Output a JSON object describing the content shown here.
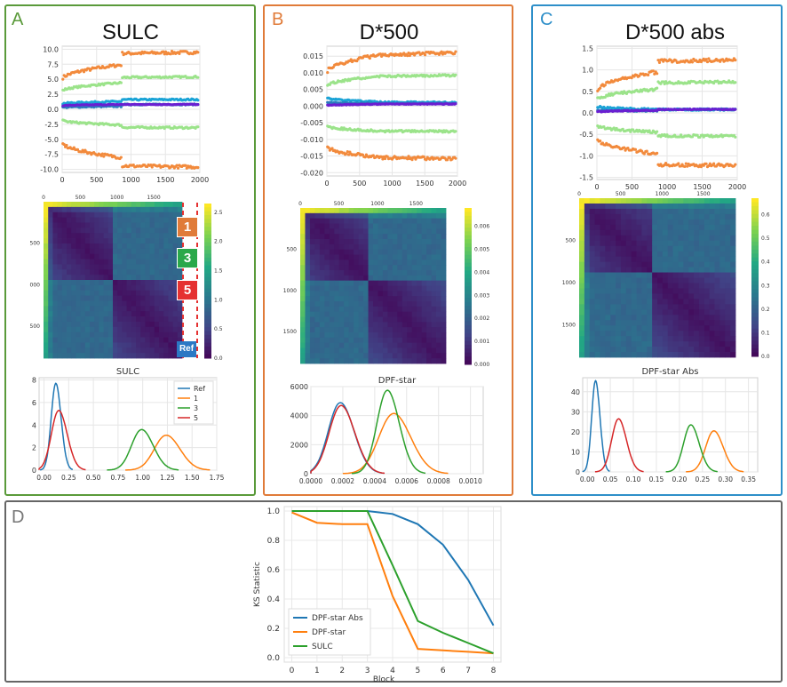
{
  "colors": {
    "orange": "#f28a3c",
    "light_green": "#9be38a",
    "blue": "#2b7bbd",
    "cyan": "#1aa3d6",
    "purple": "#6a1fd1",
    "line_blue": "#1f77b4",
    "line_orange": "#ff7f0e",
    "line_green": "#2ca02c",
    "line_red": "#d62728",
    "panel_a": "#5a9a3a",
    "panel_b": "#e07b39",
    "panel_c": "#2e8fc9",
    "panel_d": "#666666"
  },
  "panels": [
    {
      "letter": "A",
      "title": "SULC"
    },
    {
      "letter": "B",
      "title": "D*500"
    },
    {
      "letter": "C",
      "title": "D*500 abs"
    },
    {
      "letter": "D",
      "title": ""
    }
  ],
  "heatmap_labels": {
    "markers": [
      "1",
      "3",
      "5",
      "Ref"
    ]
  },
  "chart_data": [
    {
      "id": "A-scatter",
      "type": "scatter",
      "title": "",
      "xlim": [
        0,
        2000
      ],
      "ylim": [
        -10.5,
        10.5
      ],
      "xticks": [
        "0",
        "500",
        "1000",
        "1500",
        "2000"
      ],
      "yticks": [
        "10.0",
        "7.5",
        "5.0",
        "2.5",
        "0.0",
        "-2.5",
        "-5.0",
        "-7.5",
        "-10.0"
      ],
      "ytick_values": [
        10,
        7.5,
        5,
        2.5,
        0,
        -2.5,
        -5,
        -7.5,
        -10
      ],
      "series": [
        {
          "name": "top-orange",
          "color": "orange",
          "y0": 5.0,
          "y1": 7.4,
          "jump": 1.9,
          "noise": 0.25
        },
        {
          "name": "upper-green",
          "color": "light_green",
          "y0": 3.0,
          "y1": 4.4,
          "jump": 0.9,
          "noise": 0.15
        },
        {
          "name": "cyan",
          "color": "cyan",
          "y0": 0.9,
          "y1": 1.3,
          "jump": 0.3,
          "noise": 0.12
        },
        {
          "name": "blue",
          "color": "blue",
          "y0": 0.3,
          "y1": 0.5,
          "jump": 0.3,
          "noise": 0.1
        },
        {
          "name": "purple",
          "color": "purple",
          "y0": 0.6,
          "y1": 0.8,
          "jump": 0.0,
          "noise": 0.06
        },
        {
          "name": "lower-green",
          "color": "light_green",
          "y0": -1.8,
          "y1": -2.6,
          "jump": -0.4,
          "noise": 0.15
        },
        {
          "name": "bottom-orange",
          "color": "orange",
          "y0": -5.5,
          "y1": -8.0,
          "jump": -1.4,
          "noise": 0.25
        }
      ]
    },
    {
      "id": "B-scatter",
      "type": "scatter",
      "title": "",
      "xlim": [
        0,
        2000
      ],
      "ylim": [
        -0.021,
        0.018
      ],
      "xticks": [
        "0",
        "500",
        "1000",
        "1500",
        "2000"
      ],
      "yticks": [
        "0.015",
        "0.010",
        "0.005",
        "0.000",
        "-0.005",
        "-0.010",
        "-0.015",
        "-0.020"
      ],
      "ytick_values": [
        0.015,
        0.01,
        0.005,
        0,
        -0.005,
        -0.01,
        -0.015,
        -0.02
      ],
      "series": [
        {
          "name": "top-orange",
          "color": "orange",
          "y0": 0.01,
          "y1": 0.0155,
          "jump": 0.0,
          "noise": 0.0005
        },
        {
          "name": "upper-green",
          "color": "light_green",
          "y0": 0.006,
          "y1": 0.009,
          "jump": 0.0,
          "noise": 0.0003
        },
        {
          "name": "cyan",
          "color": "cyan",
          "y0": 0.0025,
          "y1": 0.0012,
          "jump": 0.0,
          "noise": 0.0002
        },
        {
          "name": "blue",
          "color": "blue",
          "y0": 0.001,
          "y1": 0.0008,
          "jump": 0.0,
          "noise": 0.0002
        },
        {
          "name": "purple",
          "color": "purple",
          "y0": 0.0002,
          "y1": 0.0006,
          "jump": 0.0,
          "noise": 0.0001
        },
        {
          "name": "lower-green",
          "color": "light_green",
          "y0": -0.006,
          "y1": -0.0075,
          "jump": 0.0,
          "noise": 0.0003
        },
        {
          "name": "bottom-orange",
          "color": "orange",
          "y0": -0.012,
          "y1": -0.0155,
          "jump": 0.0,
          "noise": 0.0005
        }
      ]
    },
    {
      "id": "C-scatter",
      "type": "scatter",
      "title": "",
      "xlim": [
        0,
        2000
      ],
      "ylim": [
        -1.55,
        1.55
      ],
      "xticks": [
        "0",
        "500",
        "1000",
        "1500",
        "2000"
      ],
      "yticks": [
        "1.5",
        "1.0",
        "0.5",
        "0.0",
        "-0.5",
        "-1.0",
        "-1.5"
      ],
      "ytick_values": [
        1.5,
        1,
        0.5,
        0,
        -0.5,
        -1,
        -1.5
      ],
      "series": [
        {
          "name": "top-orange",
          "color": "orange",
          "y0": 0.5,
          "y1": 0.95,
          "jump": 0.25,
          "noise": 0.04
        },
        {
          "name": "upper-green",
          "color": "light_green",
          "y0": 0.3,
          "y1": 0.55,
          "jump": 0.15,
          "noise": 0.03
        },
        {
          "name": "cyan",
          "color": "cyan",
          "y0": 0.15,
          "y1": 0.08,
          "jump": 0.0,
          "noise": 0.02
        },
        {
          "name": "blue",
          "color": "blue",
          "y0": 0.05,
          "y1": 0.05,
          "jump": 0.03,
          "noise": 0.015
        },
        {
          "name": "purple",
          "color": "purple",
          "y0": 0.02,
          "y1": 0.06,
          "jump": 0.02,
          "noise": 0.01
        },
        {
          "name": "lower-green",
          "color": "light_green",
          "y0": -0.3,
          "y1": -0.45,
          "jump": -0.08,
          "noise": 0.03
        },
        {
          "name": "bottom-orange",
          "color": "orange",
          "y0": -0.6,
          "y1": -0.95,
          "jump": -0.25,
          "noise": 0.04
        }
      ]
    },
    {
      "id": "A-heatmap",
      "type": "heatmap",
      "title": "",
      "xticks": [
        "0",
        "500",
        "1000",
        "1500"
      ],
      "yticks": [
        "500",
        "000",
        "500"
      ],
      "colorbar": {
        "ticks": [
          "2.5",
          "2.0",
          "1.5",
          "1.0",
          "0.5",
          "0.0"
        ],
        "values": [
          2.5,
          2.0,
          1.5,
          1.0,
          0.5,
          0.0
        ],
        "max": 2.65
      }
    },
    {
      "id": "B-heatmap",
      "type": "heatmap",
      "title": "",
      "xticks": [
        "0",
        "500",
        "1000",
        "1500"
      ],
      "yticks": [
        "500",
        "1000",
        "1500"
      ],
      "colorbar": {
        "ticks": [
          "0.006",
          "0.005",
          "0.004",
          "0.003",
          "0.002",
          "0.001",
          "0.000"
        ],
        "values": [
          0.006,
          0.005,
          0.004,
          0.003,
          0.002,
          0.001,
          0.0
        ],
        "max": 0.0068
      }
    },
    {
      "id": "C-heatmap",
      "type": "heatmap",
      "title": "",
      "xticks": [
        "0",
        "500",
        "1000",
        "1500"
      ],
      "yticks": [
        "500",
        "1000",
        "1500"
      ],
      "colorbar": {
        "ticks": [
          "0.6",
          "0.5",
          "0.4",
          "0.3",
          "0.2",
          "0.1",
          "0.0"
        ],
        "values": [
          0.6,
          0.5,
          0.4,
          0.3,
          0.2,
          0.1,
          0.0
        ],
        "max": 0.67
      }
    },
    {
      "id": "A-density",
      "type": "line",
      "title": "SULC",
      "xlim": [
        -0.05,
        1.75
      ],
      "ylim": [
        0,
        8.2
      ],
      "xticks": [
        "0.00",
        "0.25",
        "0.50",
        "0.75",
        "1.00",
        "1.25",
        "1.50",
        "1.75"
      ],
      "xtick_values": [
        0,
        0.25,
        0.5,
        0.75,
        1.0,
        1.25,
        1.5,
        1.75
      ],
      "yticks": [
        "8",
        "6",
        "4",
        "2",
        "0"
      ],
      "ytick_values": [
        8,
        6,
        4,
        2,
        0
      ],
      "legend": [
        "Ref",
        "1",
        "3",
        "5"
      ],
      "series": [
        {
          "name": "Ref",
          "color": "line_blue",
          "mu": 0.12,
          "sigma": 0.05,
          "peak": 7.7
        },
        {
          "name": "1",
          "color": "line_orange",
          "mu": 1.24,
          "sigma": 0.13,
          "peak": 3.1
        },
        {
          "name": "3",
          "color": "line_green",
          "mu": 0.99,
          "sigma": 0.11,
          "peak": 3.6
        },
        {
          "name": "5",
          "color": "line_red",
          "mu": 0.15,
          "sigma": 0.08,
          "peak": 5.3
        }
      ]
    },
    {
      "id": "B-density",
      "type": "line",
      "title": "DPF-star",
      "xlim": [
        0,
        0.00108
      ],
      "ylim": [
        0,
        6000
      ],
      "xticks": [
        "0.0000",
        "0.0002",
        "0.0004",
        "0.0006",
        "0.0008",
        "0.0010"
      ],
      "xtick_values": [
        0,
        0.0002,
        0.0004,
        0.0006,
        0.0008,
        0.001
      ],
      "yticks": [
        "6000",
        "4000",
        "2000",
        "0"
      ],
      "ytick_values": [
        6000,
        4000,
        2000,
        0
      ],
      "series": [
        {
          "name": "Ref",
          "color": "line_blue",
          "mu": 0.000185,
          "sigma": 8e-05,
          "peak": 4900
        },
        {
          "name": "1",
          "color": "line_orange",
          "mu": 0.00052,
          "sigma": 0.0001,
          "peak": 4150
        },
        {
          "name": "3",
          "color": "line_green",
          "mu": 0.00048,
          "sigma": 7e-05,
          "peak": 5750
        },
        {
          "name": "5",
          "color": "line_red",
          "mu": 0.00019,
          "sigma": 8e-05,
          "peak": 4700
        }
      ]
    },
    {
      "id": "C-density",
      "type": "line",
      "title": "DPF-star Abs",
      "xlim": [
        -0.01,
        0.37
      ],
      "ylim": [
        0,
        47
      ],
      "xticks": [
        "0.00",
        "0.05",
        "0.10",
        "0.15",
        "0.20",
        "0.25",
        "0.30",
        "0.35"
      ],
      "xtick_values": [
        0,
        0.05,
        0.1,
        0.15,
        0.2,
        0.25,
        0.3,
        0.35
      ],
      "yticks": [
        "40",
        "30",
        "20",
        "10",
        "0"
      ],
      "ytick_values": [
        40,
        30,
        20,
        10,
        0
      ],
      "series": [
        {
          "name": "Ref",
          "color": "line_blue",
          "mu": 0.018,
          "sigma": 0.009,
          "peak": 45.5
        },
        {
          "name": "1",
          "color": "line_orange",
          "mu": 0.275,
          "sigma": 0.019,
          "peak": 20.5
        },
        {
          "name": "3",
          "color": "line_green",
          "mu": 0.225,
          "sigma": 0.017,
          "peak": 23.5
        },
        {
          "name": "5",
          "color": "line_red",
          "mu": 0.068,
          "sigma": 0.016,
          "peak": 26.5
        }
      ]
    },
    {
      "id": "D-ks",
      "type": "line",
      "title": "",
      "xlabel": "Block",
      "ylabel": "KS Statistic",
      "xlim": [
        -0.3,
        8.3
      ],
      "ylim": [
        -0.03,
        1.03
      ],
      "x": [
        0,
        1,
        2,
        3,
        4,
        5,
        6,
        7,
        8
      ],
      "xticks": [
        "0",
        "1",
        "2",
        "3",
        "4",
        "5",
        "6",
        "7",
        "8"
      ],
      "yticks": [
        "1.0",
        "0.8",
        "0.6",
        "0.4",
        "0.2",
        "0.0"
      ],
      "ytick_values": [
        1.0,
        0.8,
        0.6,
        0.4,
        0.2,
        0.0
      ],
      "legend_position": "bottom-left",
      "series": [
        {
          "name": "DPF-star Abs",
          "color": "line_blue",
          "values": [
            1.0,
            1.0,
            1.0,
            1.0,
            0.98,
            0.91,
            0.77,
            0.53,
            0.22
          ]
        },
        {
          "name": "DPF-star",
          "color": "line_orange",
          "values": [
            0.99,
            0.92,
            0.91,
            0.91,
            0.42,
            0.06,
            0.05,
            0.04,
            0.03
          ]
        },
        {
          "name": "SULC",
          "color": "line_green",
          "values": [
            1.0,
            1.0,
            1.0,
            1.0,
            0.63,
            0.25,
            0.17,
            0.1,
            0.03
          ]
        }
      ]
    }
  ]
}
